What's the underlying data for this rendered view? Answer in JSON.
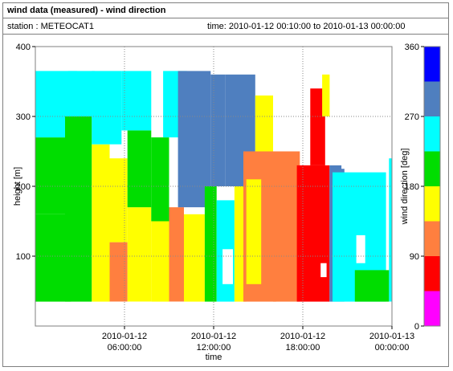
{
  "header": {
    "title": "wind data (measured) - wind direction",
    "station": "station : METEOCAT1",
    "time_range": "time: 2010-01-12 00:10:00 to 2010-01-13 00:00:00"
  },
  "chart_data": {
    "type": "heatmap",
    "xlabel": "time",
    "ylabel": "height [m]",
    "colorbar_label": "wind direction [deg]",
    "x_ticks": [
      {
        "hours": 6,
        "label_line1": "2010-01-12",
        "label_line2": "06:00:00"
      },
      {
        "hours": 12,
        "label_line1": "2010-01-12",
        "label_line2": "12:00:00"
      },
      {
        "hours": 18,
        "label_line1": "2010-01-12",
        "label_line2": "18:00:00"
      },
      {
        "hours": 24,
        "label_line1": "2010-01-13",
        "label_line2": "00:00:00"
      }
    ],
    "xlim_hours": [
      0,
      24
    ],
    "ylim": [
      0,
      400
    ],
    "y_ticks": [
      100,
      200,
      300,
      400
    ],
    "colorbar_ticks": [
      0,
      90,
      180,
      270,
      360
    ],
    "grid": true,
    "colorbar": [
      {
        "from": 0,
        "to": 45,
        "color": "#ff00ff"
      },
      {
        "from": 45,
        "to": 90,
        "color": "#ff0000"
      },
      {
        "from": 90,
        "to": 135,
        "color": "#ff7f3f"
      },
      {
        "from": 135,
        "to": 180,
        "color": "#ffff00"
      },
      {
        "from": 180,
        "to": 225,
        "color": "#00dd00"
      },
      {
        "from": 225,
        "to": 270,
        "color": "#00ffff"
      },
      {
        "from": 270,
        "to": 315,
        "color": "#4f7fbf"
      },
      {
        "from": 315,
        "to": 360,
        "color": "#0000ff"
      }
    ],
    "regions": [
      {
        "t0": 0.0,
        "t1": 2.4,
        "h0": 35,
        "h1": 160,
        "dir": 200
      },
      {
        "t0": 0.0,
        "t1": 2.6,
        "h0": 160,
        "h1": 270,
        "dir": 200
      },
      {
        "t0": 0.0,
        "t1": 2.8,
        "h0": 270,
        "h1": 365,
        "dir": 250
      },
      {
        "t0": 2.0,
        "t1": 3.8,
        "h0": 35,
        "h1": 300,
        "dir": 200
      },
      {
        "t0": 2.2,
        "t1": 4.0,
        "h0": 300,
        "h1": 365,
        "dir": 250
      },
      {
        "t0": 3.8,
        "t1": 5.0,
        "h0": 35,
        "h1": 260,
        "dir": 160
      },
      {
        "t0": 3.8,
        "t1": 5.8,
        "h0": 260,
        "h1": 365,
        "dir": 250
      },
      {
        "t0": 5.0,
        "t1": 6.2,
        "h0": 35,
        "h1": 120,
        "dir": 120
      },
      {
        "t0": 5.0,
        "t1": 6.2,
        "h0": 120,
        "h1": 240,
        "dir": 150
      },
      {
        "t0": 6.2,
        "t1": 7.8,
        "h0": 35,
        "h1": 170,
        "dir": 150
      },
      {
        "t0": 6.2,
        "t1": 7.8,
        "h0": 170,
        "h1": 280,
        "dir": 200
      },
      {
        "t0": 5.8,
        "t1": 7.8,
        "h0": 280,
        "h1": 365,
        "dir": 250
      },
      {
        "t0": 7.8,
        "t1": 9.0,
        "h0": 35,
        "h1": 150,
        "dir": 150
      },
      {
        "t0": 7.8,
        "t1": 9.0,
        "h0": 150,
        "h1": 270,
        "dir": 200
      },
      {
        "t0": 8.6,
        "t1": 10.2,
        "h0": 270,
        "h1": 365,
        "dir": 250
      },
      {
        "t0": 9.0,
        "t1": 10.0,
        "h0": 35,
        "h1": 170,
        "dir": 120
      },
      {
        "t0": 9.6,
        "t1": 11.8,
        "h0": 170,
        "h1": 365,
        "dir": 290
      },
      {
        "t0": 10.0,
        "t1": 11.4,
        "h0": 35,
        "h1": 160,
        "dir": 170
      },
      {
        "t0": 11.4,
        "t1": 12.2,
        "h0": 35,
        "h1": 200,
        "dir": 210
      },
      {
        "t0": 11.8,
        "t1": 12.8,
        "h0": 200,
        "h1": 360,
        "dir": 300
      },
      {
        "t0": 12.2,
        "t1": 13.4,
        "h0": 35,
        "h1": 180,
        "dir": 240
      },
      {
        "t0": 12.8,
        "t1": 14.8,
        "h0": 200,
        "h1": 360,
        "dir": 290
      },
      {
        "t0": 13.4,
        "t1": 14.2,
        "h0": 35,
        "h1": 200,
        "dir": 160
      },
      {
        "t0": 14.0,
        "t1": 16.2,
        "h0": 35,
        "h1": 250,
        "dir": 120
      },
      {
        "t0": 14.2,
        "t1": 15.2,
        "h0": 60,
        "h1": 210,
        "dir": 160
      },
      {
        "t0": 14.8,
        "t1": 16.0,
        "h0": 250,
        "h1": 330,
        "dir": 160
      },
      {
        "t0": 16.0,
        "t1": 17.8,
        "h0": 35,
        "h1": 250,
        "dir": 120
      },
      {
        "t0": 17.6,
        "t1": 19.8,
        "h0": 35,
        "h1": 230,
        "dir": 70
      },
      {
        "t0": 18.5,
        "t1": 19.5,
        "h0": 230,
        "h1": 340,
        "dir": 60
      },
      {
        "t0": 19.3,
        "t1": 19.8,
        "h0": 300,
        "h1": 360,
        "dir": 160
      },
      {
        "t0": 19.8,
        "t1": 20.8,
        "h0": 35,
        "h1": 230,
        "dir": 270
      },
      {
        "t0": 20.0,
        "t1": 23.6,
        "h0": 35,
        "h1": 220,
        "dir": 250
      },
      {
        "t0": 21.5,
        "t1": 23.8,
        "h0": 35,
        "h1": 80,
        "dir": 200
      },
      {
        "t0": 23.8,
        "t1": 24.0,
        "h0": 35,
        "h1": 240,
        "dir": 260
      }
    ],
    "blank_patches": [
      {
        "t0": 12.6,
        "t1": 13.3,
        "h0": 60,
        "h1": 110
      },
      {
        "t0": 19.2,
        "t1": 19.6,
        "h0": 70,
        "h1": 90
      },
      {
        "t0": 21.6,
        "t1": 22.2,
        "h0": 90,
        "h1": 130
      },
      {
        "t0": 20.6,
        "t1": 23.2,
        "h0": 225,
        "h1": 380
      }
    ]
  }
}
